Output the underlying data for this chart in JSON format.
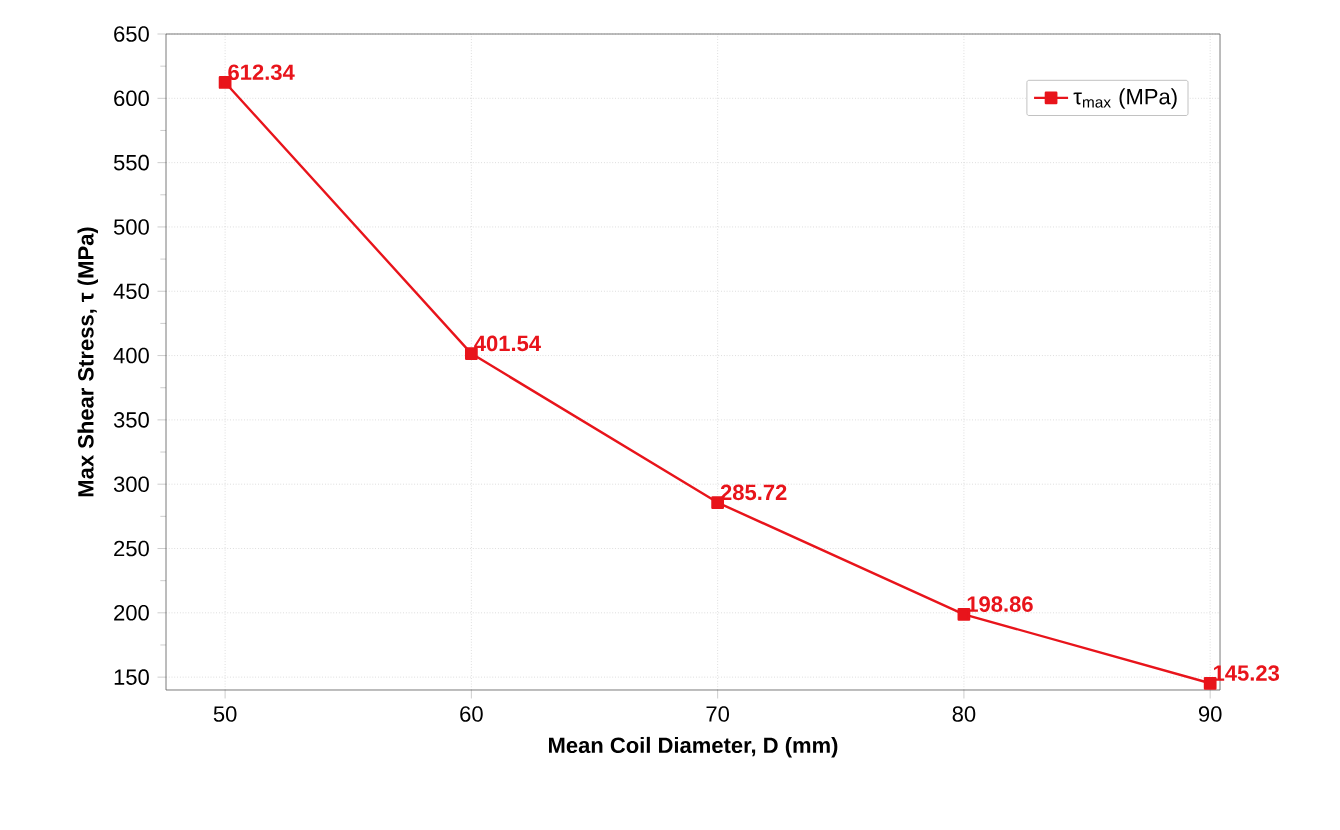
{
  "chart_data": {
    "type": "line",
    "xlabel": "Mean Coil Diameter, D (mm)",
    "ylabel": "Max Shear Stress, τ (MPa)",
    "x": [
      50,
      60,
      70,
      80,
      90
    ],
    "series": [
      {
        "name": "τ$_{max}$ (MPa)",
        "color": "#e8141b",
        "values": [
          612.34,
          401.54,
          285.72,
          198.86,
          145.23
        ]
      }
    ],
    "xlim": [
      47.6,
      90.4
    ],
    "ylim": [
      140,
      650
    ],
    "xticks": [
      50,
      60,
      70,
      80,
      90
    ],
    "yticks": [
      150,
      200,
      250,
      300,
      350,
      400,
      450,
      500,
      550,
      600,
      650
    ],
    "grid": true,
    "legend": "top right",
    "marker": "square",
    "line_style": "solid",
    "data_labels": true
  }
}
